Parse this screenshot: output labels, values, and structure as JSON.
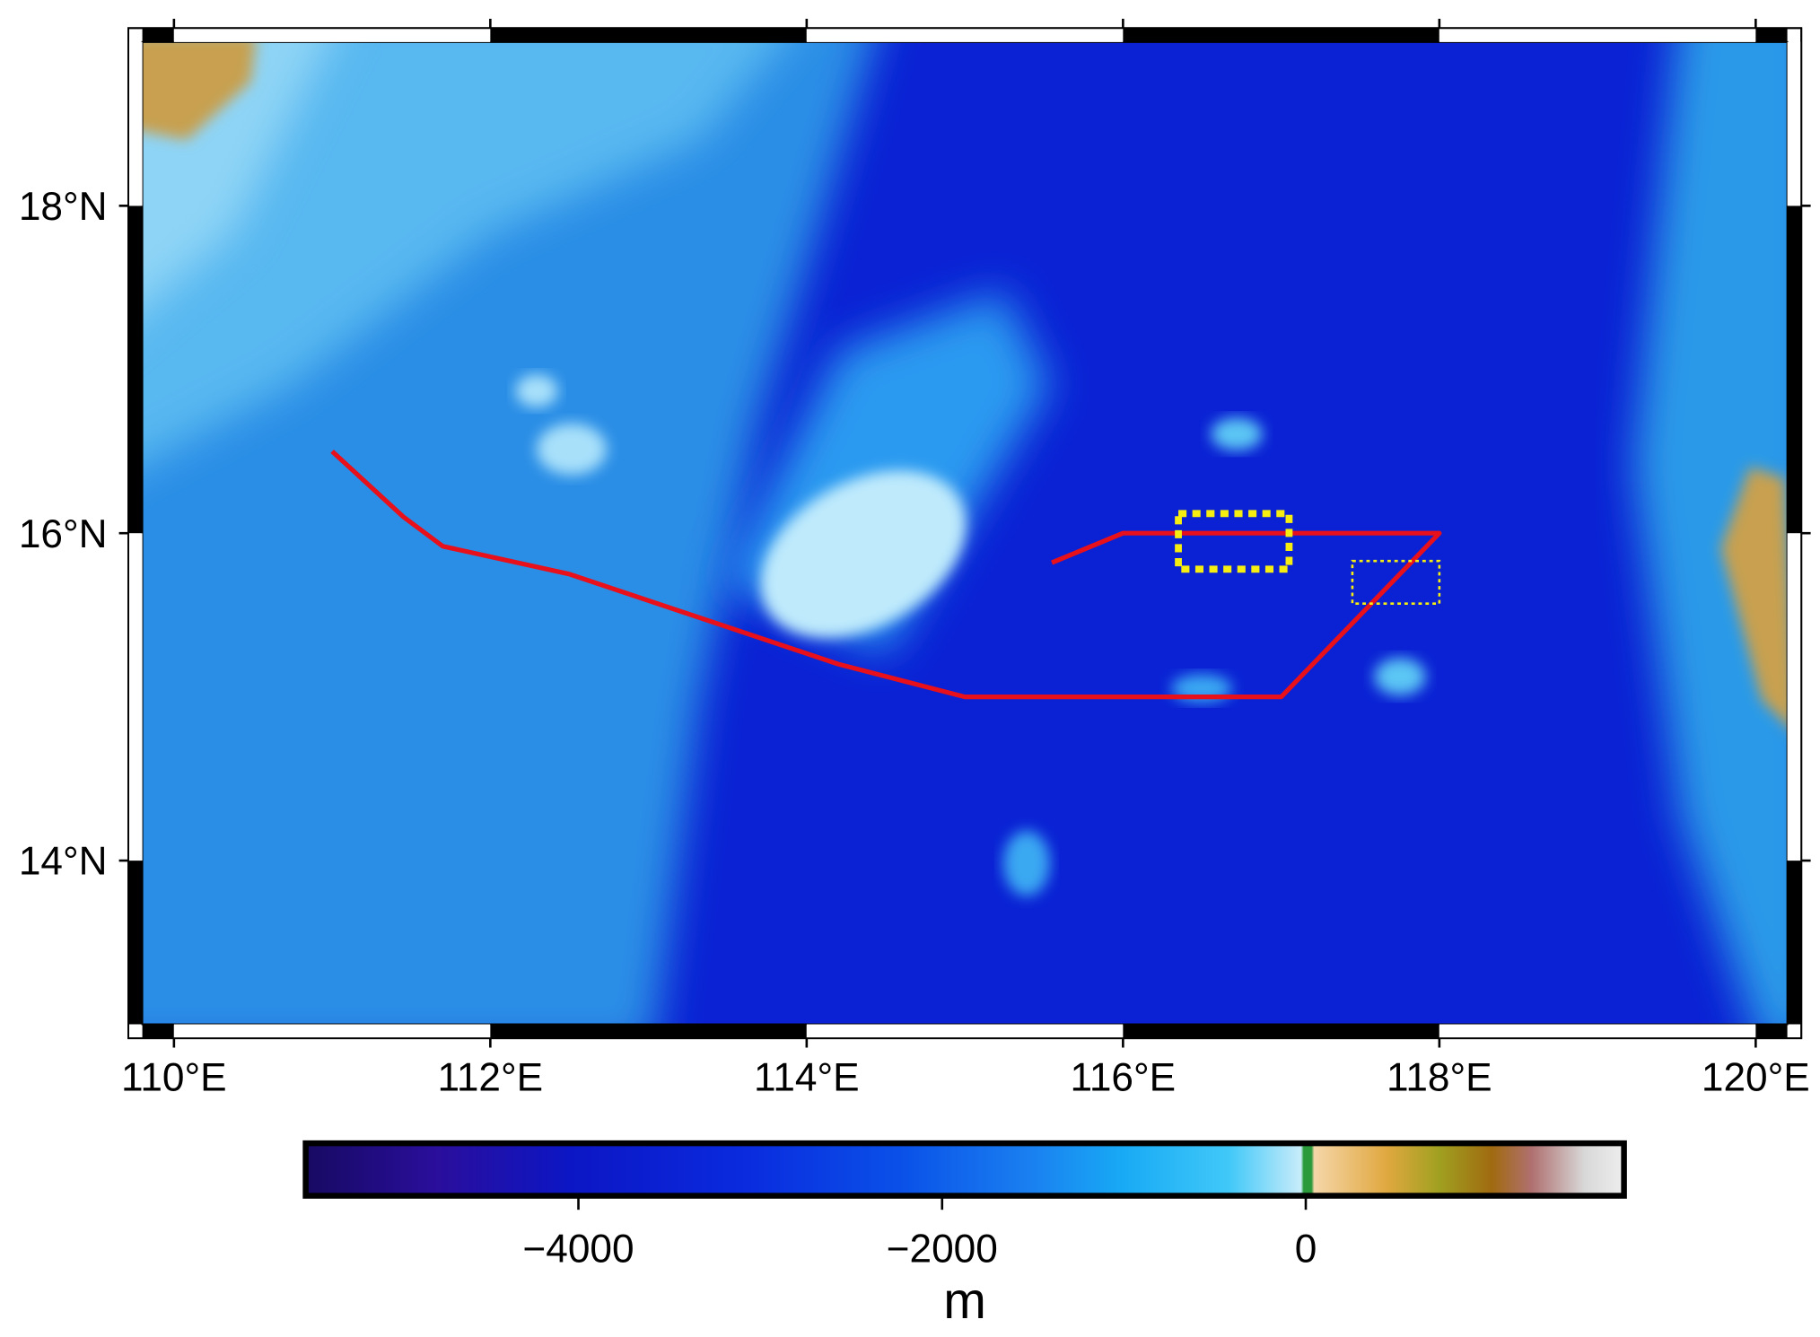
{
  "map": {
    "lon_range": [
      109.8,
      120.2
    ],
    "lat_range": [
      13,
      19
    ],
    "lon_ticks": [
      {
        "value": 110,
        "label": "110°E"
      },
      {
        "value": 112,
        "label": "112°E"
      },
      {
        "value": 114,
        "label": "114°E"
      },
      {
        "value": 116,
        "label": "116°E"
      },
      {
        "value": 118,
        "label": "118°E"
      },
      {
        "value": 120,
        "label": "120°E"
      }
    ],
    "lat_ticks": [
      {
        "value": 14,
        "label": "14°N"
      },
      {
        "value": 16,
        "label": "16°N"
      },
      {
        "value": 18,
        "label": "18°N"
      }
    ],
    "route": {
      "lon": [
        111,
        111.45,
        111.7,
        112.5,
        114.2,
        115,
        117,
        118,
        116,
        115.55
      ],
      "lat": [
        16.5,
        16.1,
        15.92,
        15.75,
        15.2,
        15.0,
        15.0,
        16.0,
        16.0,
        15.82
      ]
    },
    "boxes": [
      {
        "lon": [
          116.35,
          117.05
        ],
        "lat": [
          15.78,
          16.12
        ]
      },
      {
        "lon": [
          117.45,
          118.0
        ],
        "lat": [
          15.57,
          15.83
        ]
      }
    ],
    "colorbar": {
      "range": [
        -5500,
        1750
      ],
      "ticks": [
        {
          "value": -4000,
          "label": "−4000"
        },
        {
          "value": -2000,
          "label": "−2000"
        },
        0
      ],
      "label": "m"
    }
  }
}
